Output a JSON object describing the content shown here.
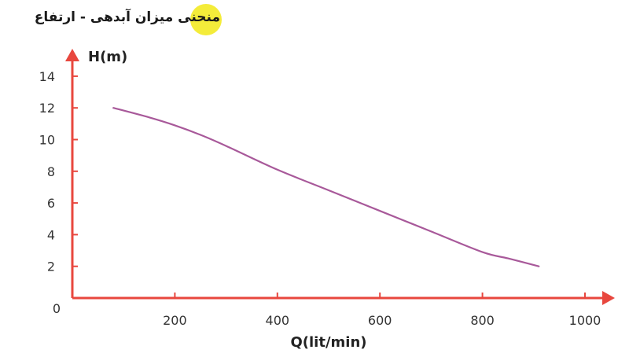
{
  "chart_data": {
    "type": "line",
    "title": "منحنی میزان آبدهی - ارتفاع",
    "xlabel": "Q(lit/min)",
    "ylabel": "H(m)",
    "xlim": [
      0,
      1000
    ],
    "ylim": [
      0,
      14
    ],
    "x_ticks": [
      200,
      400,
      600,
      800,
      1000
    ],
    "y_ticks": [
      2,
      4,
      6,
      8,
      10,
      12,
      14
    ],
    "origin_label": "0",
    "grid": false,
    "series": [
      {
        "x": [
          80,
          150,
          200,
          250,
          300,
          400,
          500,
          600,
          700,
          800,
          850,
          910
        ],
        "y": [
          12.0,
          11.4,
          10.9,
          10.3,
          9.6,
          8.1,
          6.8,
          5.5,
          4.2,
          2.9,
          2.5,
          2.0
        ]
      }
    ]
  },
  "colors": {
    "axis": "#e8473e",
    "curve": "#a8599a",
    "title_highlight": "#f4ec3a"
  }
}
